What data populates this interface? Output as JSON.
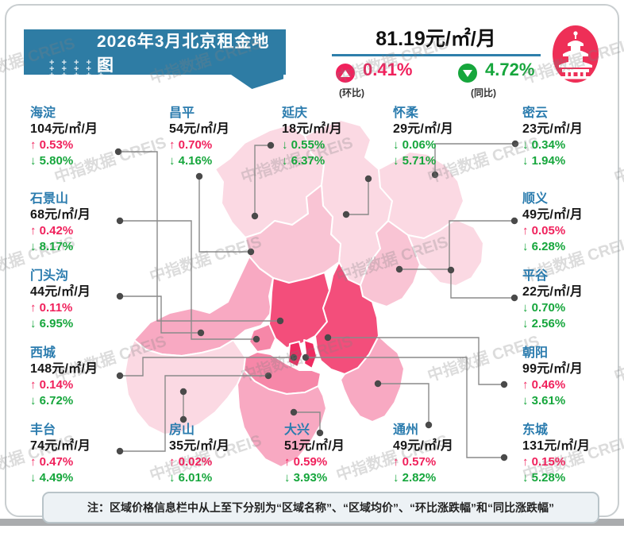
{
  "banner": {
    "title": "2026年3月北京租金地图"
  },
  "summary": {
    "avg_price": "81.19元/㎡/月",
    "mom_value": "0.41%",
    "mom_label": "(环比)",
    "yoy_value": "4.72%",
    "yoy_label": "(同比)"
  },
  "watermark": "中指数据 CREIS",
  "note": "注：区域价格信息栏中从上至下分别为“区域名称”、“区域均价”、“环比涨跌幅”和“同比涨跌幅”",
  "colors": {
    "banner_teal": "#2e7ca4",
    "rise_pink": "#f0215c",
    "fall_green": "#16a63c",
    "district_name_blue": "#2b7cae",
    "badge_red": "#ee2f57"
  },
  "map": {
    "tiers": {
      "t1": "#fbd9e3",
      "t2": "#f9c4d4",
      "t3": "#f8a9c2",
      "t4": "#f687a8",
      "t5": "#f34e7b",
      "t6": "#ef2a60"
    }
  },
  "districts": [
    {
      "name": "海淀",
      "price": "104元/㎡/月",
      "mom": "↑ 0.53%",
      "yoy": "↓ 5.80%"
    },
    {
      "name": "昌平",
      "price": "54元/㎡/月",
      "mom": "↑ 0.70%",
      "yoy": "↓ 4.16%"
    },
    {
      "name": "延庆",
      "price": "18元/㎡/月",
      "mom": "↓ 0.55%",
      "yoy": "↓ 6.37%"
    },
    {
      "name": "怀柔",
      "price": "29元/㎡/月",
      "mom": "↓ 0.06%",
      "yoy": "↓ 5.71%"
    },
    {
      "name": "密云",
      "price": "23元/㎡/月",
      "mom": "↓ 0.34%",
      "yoy": "↓ 1.94%"
    },
    {
      "name": "石景山",
      "price": "68元/㎡/月",
      "mom": "↑ 0.42%",
      "yoy": "↓ 8.17%"
    },
    {
      "name": "顺义",
      "price": "49元/㎡/月",
      "mom": "↑ 0.05%",
      "yoy": "↓ 6.28%"
    },
    {
      "name": "门头沟",
      "price": "44元/㎡/月",
      "mom": "↑ 0.11%",
      "yoy": "↓ 6.95%"
    },
    {
      "name": "平谷",
      "price": "22元/㎡/月",
      "mom": "↓ 0.70%",
      "yoy": "↓ 2.56%"
    },
    {
      "name": "西城",
      "price": "148元/㎡/月",
      "mom": "↑ 0.14%",
      "yoy": "↓ 6.72%"
    },
    {
      "name": "朝阳",
      "price": "99元/㎡/月",
      "mom": "↑ 0.46%",
      "yoy": "↓ 3.61%"
    },
    {
      "name": "丰台",
      "price": "74元/㎡/月",
      "mom": "↑ 0.47%",
      "yoy": "↓ 4.49%"
    },
    {
      "name": "房山",
      "price": "35元/㎡/月",
      "mom": "↑ 0.02%",
      "yoy": "↓ 6.01%"
    },
    {
      "name": "大兴",
      "price": "51元/㎡/月",
      "mom": "↑ 0.59%",
      "yoy": "↓ 3.93%"
    },
    {
      "name": "通州",
      "price": "49元/㎡/月",
      "mom": "↑ 0.57%",
      "yoy": "↓ 2.82%"
    },
    {
      "name": "东城",
      "price": "131元/㎡/月",
      "mom": "↑ 0.15%",
      "yoy": "↓ 5.28%"
    }
  ]
}
